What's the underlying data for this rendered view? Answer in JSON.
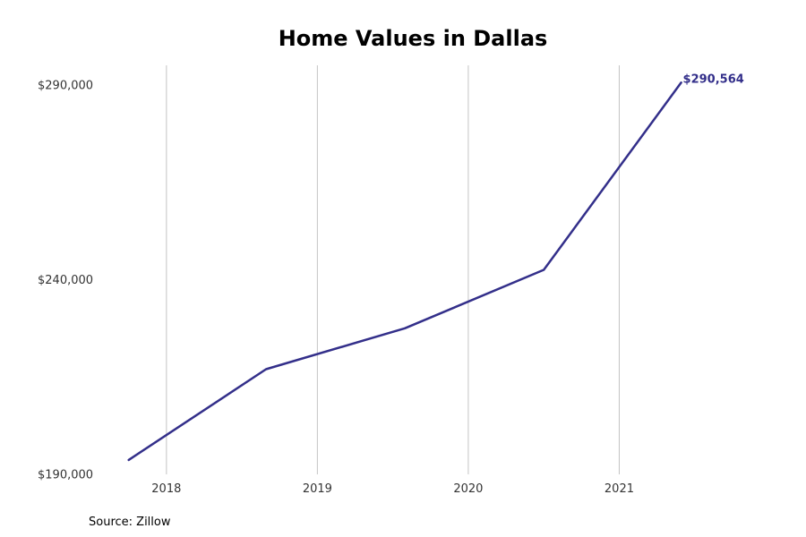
{
  "chart_data": {
    "type": "line",
    "title": "Home Values in Dallas",
    "xlabel": "",
    "ylabel": "",
    "source": "Source: Zillow",
    "x_ticks": [
      {
        "label": "2018",
        "value": 2018
      },
      {
        "label": "2019",
        "value": 2019
      },
      {
        "label": "2020",
        "value": 2020
      },
      {
        "label": "2021",
        "value": 2021
      }
    ],
    "y_ticks": [
      {
        "label": "$190,000",
        "value": 190000
      },
      {
        "label": "$240,000",
        "value": 240000
      },
      {
        "label": "$290,000",
        "value": 290000
      }
    ],
    "xlim": [
      2017.55,
      2022.0
    ],
    "ylim": [
      190000,
      295000
    ],
    "grid": "vertical",
    "legend": "none",
    "series": [
      {
        "color": "#332f8a",
        "points": [
          {
            "x": 2017.75,
            "y": 193700
          },
          {
            "x": 2018.66,
            "y": 217000
          },
          {
            "x": 2019.58,
            "y": 227500
          },
          {
            "x": 2020.5,
            "y": 242500
          },
          {
            "x": 2021.41,
            "y": 290564
          }
        ]
      }
    ],
    "end_label": "$290,564"
  }
}
